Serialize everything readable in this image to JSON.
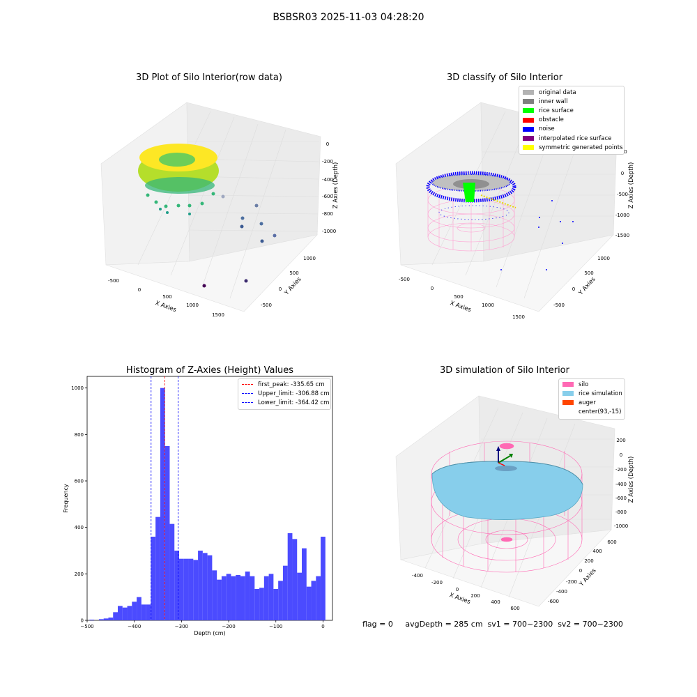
{
  "figure": {
    "suptitle": "BSBSR03 2025-11-03 04:28:20",
    "status_line": "flag = 0     avgDepth = 285 cm  sv1 = 700~2300  sv2 = 700~2300"
  },
  "panels": {
    "raw3d": {
      "title": "3D Plot of Silo Interior(row data)",
      "xlabel": "X Axies",
      "ylabel": "Y Axies",
      "zlabel": "Z Axies (Depth)",
      "xticks": [
        "-500",
        "0",
        "500",
        "1000",
        "1500"
      ],
      "yticks": [
        "-500",
        "0",
        "500",
        "1000"
      ],
      "zticks": [
        "0",
        "-200",
        "-400",
        "-600",
        "-800",
        "-1000"
      ]
    },
    "classify3d": {
      "title": "3D classify of Silo Interior",
      "xlabel": "X Axies",
      "ylabel": "Y Axies",
      "zlabel": "Z Axies (Depth)",
      "xticks": [
        "-500",
        "0",
        "500",
        "1000",
        "1500"
      ],
      "yticks": [
        "-500",
        "0",
        "500",
        "1000"
      ],
      "zticks": [
        "500",
        "0",
        "-500",
        "-1000",
        "-1500"
      ],
      "legend": [
        {
          "label": "original data",
          "color": "#b3b3b3"
        },
        {
          "label": "inner wall",
          "color": "#808080"
        },
        {
          "label": "rice surface",
          "color": "#00ff00"
        },
        {
          "label": "obstacle",
          "color": "#ff0000"
        },
        {
          "label": "noise",
          "color": "#0000ff"
        },
        {
          "label": "interpolated rice surface",
          "color": "#800080"
        },
        {
          "label": "symmetric generated points",
          "color": "#ffff00"
        }
      ]
    },
    "sim3d": {
      "title": "3D simulation of Silo Interior",
      "xlabel": "X Axies",
      "ylabel": "Y Axies",
      "zlabel": "Z Axies (Depth)",
      "xticks": [
        "-400",
        "-200",
        "0",
        "200",
        "400",
        "600"
      ],
      "yticks": [
        "-600",
        "-400",
        "-200",
        "0",
        "200",
        "400",
        "600"
      ],
      "zticks": [
        "200",
        "0",
        "-200",
        "-400",
        "-600",
        "-800",
        "-1000"
      ],
      "legend": [
        {
          "label": "silo",
          "color": "#ff69b4"
        },
        {
          "label": "rice simulation",
          "color": "#87ceeb"
        },
        {
          "label": "auger",
          "color": "#ff4500"
        },
        {
          "label": "center(93,-15)",
          "color": ""
        }
      ]
    }
  },
  "chart_data": [
    {
      "type": "bar",
      "title": "Histogram of Z-Axies (Height) Values",
      "xlabel": "Depth (cm)",
      "ylabel": "Frequency",
      "xlim": [
        -500,
        20
      ],
      "ylim": [
        0,
        1050
      ],
      "xticks": [
        -500,
        -400,
        -300,
        -200,
        -100,
        0
      ],
      "yticks": [
        0,
        200,
        400,
        600,
        800,
        1000
      ],
      "bar_color": "#4b4bff",
      "bin_edges_start": -495,
      "bin_width": 10,
      "values": [
        3,
        0,
        5,
        8,
        12,
        35,
        62,
        55,
        62,
        80,
        100,
        68,
        68,
        360,
        445,
        1000,
        750,
        415,
        300,
        265,
        265,
        265,
        260,
        300,
        290,
        280,
        215,
        175,
        190,
        200,
        190,
        195,
        190,
        210,
        190,
        135,
        140,
        190,
        200,
        135,
        170,
        235,
        375,
        350,
        205,
        310,
        145,
        170,
        190,
        360
      ],
      "vlines": [
        {
          "x": -335.65,
          "label": "first_peak: -335.65 cm",
          "color": "#ff0000"
        },
        {
          "x": -306.88,
          "label": "Upper_limit: -306.88 cm",
          "color": "#0000ff"
        },
        {
          "x": -364.42,
          "label": "Lower_limit: -364.42 cm",
          "color": "#0000ff"
        }
      ],
      "legend_position": "top-right"
    }
  ]
}
